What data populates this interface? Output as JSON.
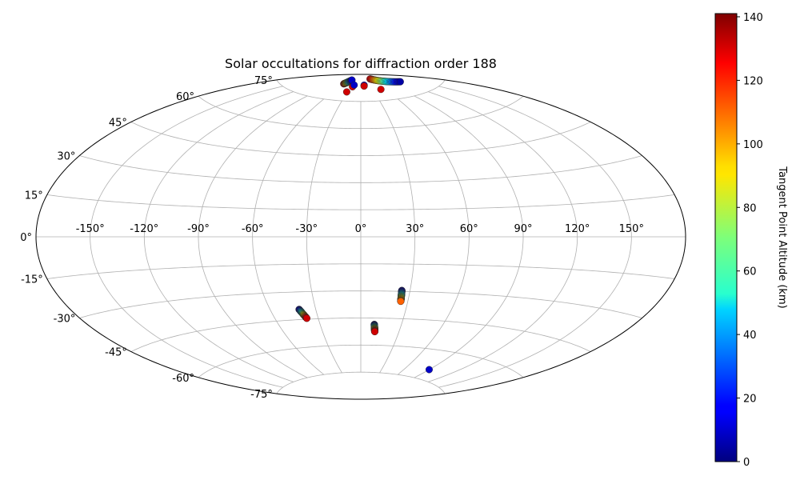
{
  "chart_data": {
    "type": "scatter",
    "projection": "aitoff",
    "title": "Solar occultations for diffraction order 188",
    "grid": true,
    "longitude_ticks": [
      -150,
      -120,
      -90,
      -60,
      -30,
      0,
      30,
      60,
      90,
      120,
      150
    ],
    "longitude_tick_labels": [
      "-150°",
      "-120°",
      "-90°",
      "-60°",
      "-30°",
      "0°",
      "30°",
      "60°",
      "90°",
      "120°",
      "150°"
    ],
    "latitude_ticks": [
      75,
      60,
      45,
      30,
      15,
      0,
      -15,
      -30,
      -45,
      -60,
      -75
    ],
    "latitude_tick_labels": [
      "75°",
      "60°",
      "45°",
      "30°",
      "15°",
      "0°",
      "-15°",
      "-30°",
      "-45°",
      "-60°",
      "-75°"
    ],
    "colorbar": {
      "label": "Tangent Point Altitude (km)",
      "colormap": "jet",
      "range": [
        0,
        141
      ],
      "ticks": [
        0,
        20,
        40,
        60,
        80,
        100,
        120,
        140
      ],
      "tick_labels": [
        "0",
        "20",
        "40",
        "60",
        "80",
        "100",
        "120",
        "140"
      ]
    },
    "series": [
      {
        "lon_start": -64,
        "lat_start": 84,
        "lon_end": -55,
        "lat_end": 86.5,
        "alt_start": 130,
        "alt_end": 10
      },
      {
        "lon_start": -32,
        "lat_start": 80,
        "lon_end": -32,
        "lat_end": 80,
        "alt_start": 130,
        "alt_end": 130
      },
      {
        "lon_start": -26,
        "lat_start": 83,
        "lon_end": -26,
        "lat_end": 83,
        "alt_start": 130,
        "alt_end": 130
      },
      {
        "lon_start": -24,
        "lat_start": 84,
        "lon_end": -24,
        "lat_end": 84,
        "alt_start": 80,
        "alt_end": 10
      },
      {
        "lon_start": 12,
        "lat_start": 84,
        "lon_end": 12,
        "lat_end": 84,
        "alt_start": 40,
        "alt_end": 10
      },
      {
        "lon_start": 11,
        "lat_start": 83.5,
        "lon_end": 11,
        "lat_end": 83.5,
        "alt_start": 130,
        "alt_end": 130
      },
      {
        "lon_start": 68,
        "lat_start": 87,
        "lon_end": 130,
        "lat_end": 82,
        "alt_start": 130,
        "alt_end": 5
      },
      {
        "lon_start": 51,
        "lat_start": 81,
        "lon_end": 51,
        "lat_end": 81,
        "alt_start": 130,
        "alt_end": 130
      },
      {
        "lon_start": -41,
        "lat_start": -39.5,
        "lon_end": -38,
        "lat_end": -44.5,
        "alt_start": 5,
        "alt_end": 130
      },
      {
        "lon_start": 10,
        "lat_start": -48.5,
        "lon_end": 11,
        "lat_end": -52.5,
        "alt_start": 5,
        "alt_end": 130
      },
      {
        "lon_start": 25,
        "lat_start": -29.5,
        "lon_end": 25.5,
        "lat_end": -35.5,
        "alt_start": 5,
        "alt_end": 110
      },
      {
        "lon_start": 90,
        "lat_start": -70,
        "lon_end": 90,
        "lat_end": -70,
        "alt_start": 5,
        "alt_end": 10
      }
    ]
  }
}
